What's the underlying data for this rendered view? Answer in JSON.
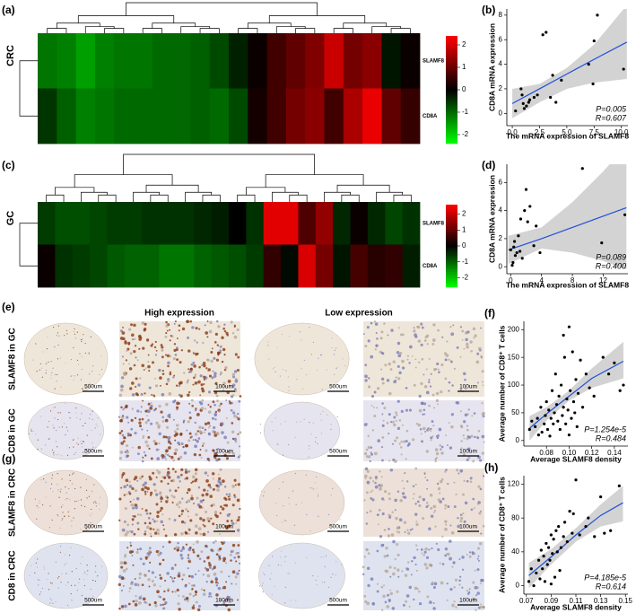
{
  "chart_data": [
    {
      "type": "heatmap",
      "label": "(a)",
      "group": "CRC",
      "colormap": [
        "#00ff00",
        "#000000",
        "#ff0000"
      ],
      "colorbar": {
        "lim": [
          -2.4,
          2.4
        ],
        "ticks": [
          2,
          1,
          0,
          -1,
          -2
        ]
      },
      "series": [
        {
          "name": "SLAMF8",
          "values": [
            -1.1,
            -1.2,
            -1.5,
            -1.2,
            -1.1,
            -1.1,
            -1.0,
            -1.0,
            -0.9,
            -0.7,
            -0.3,
            0.1,
            0.6,
            0.9,
            1.2,
            1.9,
            1.1,
            1.3,
            -0.2,
            0.1
          ]
        },
        {
          "name": "CD8A",
          "values": [
            -0.5,
            -0.9,
            -1.2,
            -1.1,
            -1.0,
            -1.0,
            -1.0,
            -1.0,
            -0.9,
            -1.0,
            -0.7,
            0.2,
            0.6,
            1.1,
            1.3,
            0.6,
            1.6,
            2.2,
            0.9,
            0.5
          ]
        }
      ]
    },
    {
      "type": "scatter",
      "label": "(b)",
      "xlabel": "The mRNA expression of SLAMF8",
      "ylabel": "CD8A mRNA expression",
      "annotations": [
        "P=0.005",
        "R=0.607"
      ],
      "color": "#000000",
      "fit_color": "#1f4fd8",
      "band_color": "#d3d3d3",
      "xlim": [
        -0.5,
        10.6
      ],
      "ylim": [
        -1,
        8.5
      ],
      "xticks": [
        {
          "value": 0,
          "label": "0.0"
        },
        {
          "value": 2.5,
          "label": "2.5"
        },
        {
          "value": 5,
          "label": "5.0"
        },
        {
          "value": 7.5,
          "label": "7.5"
        },
        {
          "value": 10,
          "label": "10.0"
        }
      ],
      "yticks": [
        0,
        2,
        4,
        6,
        8
      ],
      "x": [
        0.3,
        0.8,
        1.0,
        1.1,
        1.3,
        1.5,
        1.6,
        2.0,
        2.3,
        2.8,
        3.1,
        3.5,
        3.7,
        4.0,
        4.5,
        7.0,
        7.4,
        7.5,
        7.8,
        10.2,
        0.9
      ],
      "values": [
        0.2,
        2.0,
        0.8,
        0.4,
        0.6,
        0.9,
        1.1,
        1.3,
        1.5,
        6.4,
        6.6,
        1.3,
        3.1,
        0.9,
        2.7,
        4.0,
        2.4,
        5.9,
        8.0,
        3.6,
        1.5
      ],
      "fit": {
        "x": [
          0,
          2.5,
          5,
          7.5,
          10.5
        ],
        "y": [
          0.8,
          2.0,
          3.2,
          4.4,
          5.8
        ],
        "lower": [
          -0.4,
          0.9,
          2.0,
          2.5,
          2.8
        ],
        "upper": [
          2.0,
          2.4,
          3.7,
          5.6,
          8.8
        ]
      }
    },
    {
      "type": "heatmap",
      "label": "(c)",
      "group": "GC",
      "colormap": [
        "#00ff00",
        "#000000",
        "#ff0000"
      ],
      "colorbar": {
        "lim": [
          -2.6,
          2.6
        ],
        "ticks": [
          2,
          1,
          0,
          -1,
          -2
        ]
      },
      "series": [
        {
          "name": "SLAMF8",
          "values": [
            -0.6,
            -0.8,
            -0.8,
            -0.7,
            -0.6,
            -0.6,
            -0.5,
            -0.5,
            -0.5,
            -0.4,
            -0.3,
            0.0,
            -0.5,
            2.3,
            2.3,
            0.8,
            1.5,
            -0.4,
            0.1,
            -0.4,
            -0.7,
            -0.5
          ]
        },
        {
          "name": "CD8A",
          "values": [
            0.1,
            -0.5,
            -0.6,
            -0.7,
            -0.9,
            -1.0,
            -1.0,
            -1.2,
            -1.2,
            -1.0,
            -0.9,
            -0.8,
            -0.6,
            0.5,
            -0.1,
            2.2,
            1.2,
            -0.2,
            0.7,
            0.4,
            0.5,
            -0.3
          ]
        }
      ]
    },
    {
      "type": "scatter",
      "label": "(d)",
      "xlabel": "The mRNA expression of SLAMF8",
      "ylabel": "CD8A mRNA expression",
      "annotations": [
        "P=0.089",
        "R=0.400"
      ],
      "color": "#000000",
      "fit_color": "#1f4fd8",
      "band_color": "#d3d3d3",
      "xlim": [
        -0.5,
        15.2
      ],
      "ylim": [
        -0.5,
        7.3
      ],
      "xticks": [
        0,
        4,
        8,
        12
      ],
      "yticks": [
        0,
        2,
        4,
        6
      ],
      "x": [
        0.0,
        0.2,
        0.3,
        0.5,
        0.6,
        0.8,
        1.0,
        1.2,
        1.5,
        1.8,
        2.0,
        2.2,
        2.5,
        3.0,
        3.3,
        3.8,
        9.3,
        11.8,
        14.8,
        0.4,
        1.3
      ],
      "values": [
        1.2,
        0.1,
        0.3,
        1.8,
        0.8,
        1.0,
        2.2,
        1.1,
        0.6,
        4.0,
        5.5,
        3.2,
        4.3,
        1.5,
        2.9,
        1.0,
        7.0,
        1.7,
        3.7,
        1.4,
        3.4
      ],
      "fit": {
        "x": [
          -0.3,
          4,
          8,
          12,
          15
        ],
        "y": [
          1.2,
          2.0,
          2.8,
          3.6,
          4.2
        ],
        "lower": [
          0.2,
          1.3,
          1.0,
          0.4,
          -0.2
        ],
        "upper": [
          2.2,
          2.8,
          4.6,
          6.8,
          8.6
        ]
      }
    },
    {
      "type": "scatter",
      "label": "(f)",
      "xlabel": "Average SLAMF8 density",
      "ylabel": "Average number of CD8⁺ T cells",
      "annotations": [
        "P=1.254e-5",
        "R=0.484"
      ],
      "color": "#000000",
      "fit_color": "#1f4fd8",
      "band_color": "#d3d3d3",
      "xlim": [
        0.06,
        0.152
      ],
      "ylim": [
        -10,
        215
      ],
      "xticks": [
        0.08,
        {
          "value": 0.1,
          "label": "0.10"
        },
        0.12,
        0.14
      ],
      "yticks": [
        0,
        50,
        100,
        150,
        200
      ],
      "x": [
        0.065,
        0.067,
        0.07,
        0.072,
        0.073,
        0.075,
        0.076,
        0.078,
        0.079,
        0.08,
        0.081,
        0.082,
        0.083,
        0.084,
        0.085,
        0.086,
        0.087,
        0.088,
        0.089,
        0.09,
        0.091,
        0.092,
        0.093,
        0.094,
        0.095,
        0.096,
        0.097,
        0.098,
        0.099,
        0.1,
        0.1,
        0.101,
        0.102,
        0.103,
        0.104,
        0.105,
        0.106,
        0.107,
        0.108,
        0.11,
        0.112,
        0.115,
        0.118,
        0.122,
        0.13,
        0.135,
        0.14,
        0.145,
        0.148,
        0.095
      ],
      "values": [
        20,
        35,
        25,
        40,
        10,
        60,
        15,
        30,
        45,
        70,
        20,
        55,
        8,
        40,
        90,
        30,
        50,
        120,
        65,
        35,
        80,
        20,
        100,
        45,
        60,
        150,
        30,
        75,
        55,
        205,
        10,
        90,
        40,
        160,
        70,
        50,
        110,
        25,
        85,
        145,
        60,
        120,
        95,
        80,
        150,
        120,
        140,
        90,
        100,
        190
      ],
      "fit": {
        "x": [
          0.065,
          0.08,
          0.1,
          0.12,
          0.148
        ],
        "y": [
          22,
          48,
          80,
          112,
          143
        ],
        "lower": [
          0,
          36,
          72,
          95,
          112
        ],
        "upper": [
          44,
          60,
          90,
          130,
          178
        ]
      }
    },
    {
      "type": "scatter",
      "label": "(h)",
      "xlabel": "Average SLAMF8 density",
      "ylabel": "Average number of CD8⁺ T cells",
      "annotations": [
        "P=4.185e-5",
        "R=0.614"
      ],
      "color": "#000000",
      "fit_color": "#1f4fd8",
      "band_color": "#d3d3d3",
      "xlim": [
        0.068,
        0.152
      ],
      "ylim": [
        -10,
        130
      ],
      "xticks": [
        0.07,
        0.09,
        0.11,
        0.13,
        0.15
      ],
      "yticks": [
        0,
        40,
        80,
        120
      ],
      "x": [
        0.072,
        0.074,
        0.076,
        0.078,
        0.08,
        0.081,
        0.082,
        0.083,
        0.084,
        0.085,
        0.086,
        0.087,
        0.088,
        0.089,
        0.09,
        0.091,
        0.092,
        0.093,
        0.094,
        0.095,
        0.096,
        0.098,
        0.1,
        0.101,
        0.103,
        0.105,
        0.107,
        0.108,
        0.11,
        0.113,
        0.118,
        0.12,
        0.125,
        0.13,
        0.133,
        0.138,
        0.145,
        0.09,
        0.097
      ],
      "values": [
        5,
        20,
        0,
        15,
        30,
        8,
        42,
        20,
        35,
        5,
        50,
        25,
        45,
        30,
        60,
        38,
        55,
        10,
        65,
        40,
        70,
        45,
        58,
        75,
        52,
        88,
        62,
        85,
        125,
        60,
        70,
        80,
        58,
        105,
        62,
        65,
        118,
        2,
        18
      ],
      "fit": {
        "x": [
          0.072,
          0.09,
          0.11,
          0.13,
          0.148
        ],
        "y": [
          12,
          34,
          60,
          83,
          98
        ],
        "lower": [
          -3,
          25,
          52,
          70,
          76
        ],
        "upper": [
          27,
          43,
          68,
          96,
          118
        ]
      }
    }
  ],
  "ihc": {
    "label_e": "(e)",
    "label_g": "(g)",
    "headers": [
      "High expression",
      "Low expression"
    ],
    "rows": [
      "SLAMF8 in GC",
      "CD8 in GC",
      "SLAMF8 in CRC",
      "CD8  in CRC"
    ],
    "scale_labels": [
      "500um",
      "100um",
      "500um",
      "100um"
    ]
  }
}
